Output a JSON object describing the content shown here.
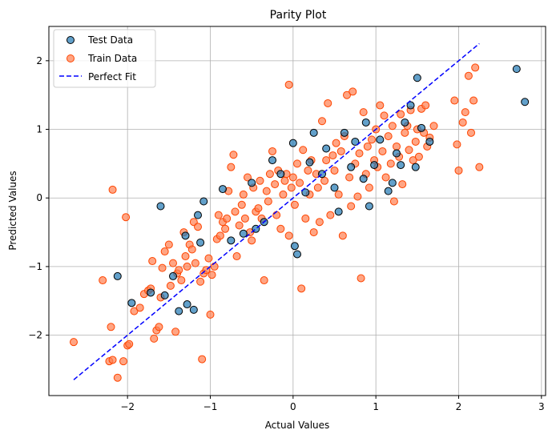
{
  "chart_data": {
    "type": "scatter",
    "title": "Parity Plot",
    "xlabel": "Actual Values",
    "ylabel": "Predicted Values",
    "xlim": [
      -2.95,
      3.05
    ],
    "ylim": [
      -2.88,
      2.5
    ],
    "xticks": [
      -2,
      -1,
      0,
      1,
      2,
      3
    ],
    "yticks": [
      -2,
      -1,
      0,
      1,
      2
    ],
    "xtick_labels": [
      "−2",
      "−1",
      "0",
      "1",
      "2",
      "3"
    ],
    "ytick_labels": [
      "−2",
      "−1",
      "0",
      "1",
      "2"
    ],
    "grid": true,
    "legend_position": "top-left",
    "series": [
      {
        "name": "Test Data",
        "kind": "scatter",
        "color": "#1f77b4",
        "edge_color": "#000000",
        "points": [
          [
            -2.12,
            -1.14
          ],
          [
            -1.95,
            -1.53
          ],
          [
            -1.72,
            -1.38
          ],
          [
            -1.55,
            -1.42
          ],
          [
            -1.6,
            -0.12
          ],
          [
            -1.45,
            -1.14
          ],
          [
            -1.38,
            -1.65
          ],
          [
            -1.28,
            -1.55
          ],
          [
            -1.3,
            -0.55
          ],
          [
            -1.2,
            -1.63
          ],
          [
            -1.12,
            -0.65
          ],
          [
            -1.15,
            -0.25
          ],
          [
            -1.08,
            -0.05
          ],
          [
            -0.85,
            0.13
          ],
          [
            -0.75,
            -0.62
          ],
          [
            -0.6,
            -0.52
          ],
          [
            -0.5,
            0.22
          ],
          [
            -0.45,
            -0.45
          ],
          [
            -0.35,
            -0.35
          ],
          [
            -0.25,
            0.55
          ],
          [
            -0.15,
            0.35
          ],
          [
            0.0,
            0.8
          ],
          [
            0.02,
            -0.7
          ],
          [
            0.05,
            -0.82
          ],
          [
            0.15,
            0.08
          ],
          [
            0.2,
            0.52
          ],
          [
            0.25,
            0.95
          ],
          [
            0.35,
            0.35
          ],
          [
            0.4,
            0.72
          ],
          [
            0.5,
            0.15
          ],
          [
            0.55,
            -0.2
          ],
          [
            0.62,
            0.95
          ],
          [
            0.7,
            0.45
          ],
          [
            0.75,
            0.82
          ],
          [
            0.85,
            0.28
          ],
          [
            0.88,
            1.1
          ],
          [
            0.92,
            -0.12
          ],
          [
            0.98,
            0.48
          ],
          [
            1.05,
            0.85
          ],
          [
            1.15,
            0.1
          ],
          [
            1.2,
            0.22
          ],
          [
            1.25,
            0.65
          ],
          [
            1.3,
            0.48
          ],
          [
            1.35,
            1.1
          ],
          [
            1.42,
            1.35
          ],
          [
            1.48,
            0.45
          ],
          [
            1.5,
            1.75
          ],
          [
            1.55,
            1.02
          ],
          [
            1.65,
            0.82
          ],
          [
            2.7,
            1.88
          ],
          [
            2.8,
            1.4
          ]
        ]
      },
      {
        "name": "Train Data",
        "kind": "scatter",
        "color": "#ff7f50",
        "edge_color": "#ff4500",
        "points": [
          [
            -2.65,
            -2.1
          ],
          [
            -2.3,
            -1.2
          ],
          [
            -2.2,
            -1.88
          ],
          [
            -2.22,
            -2.38
          ],
          [
            -2.18,
            -2.36
          ],
          [
            -2.12,
            -2.62
          ],
          [
            -2.18,
            0.12
          ],
          [
            -2.05,
            -2.38
          ],
          [
            -2.02,
            -0.28
          ],
          [
            -2.0,
            -2.15
          ],
          [
            -1.98,
            -2.13
          ],
          [
            -1.92,
            -1.65
          ],
          [
            -1.85,
            -1.6
          ],
          [
            -1.8,
            -1.4
          ],
          [
            -1.75,
            -1.35
          ],
          [
            -1.72,
            -1.32
          ],
          [
            -1.7,
            -0.92
          ],
          [
            -1.68,
            -2.05
          ],
          [
            -1.65,
            -1.93
          ],
          [
            -1.62,
            -1.88
          ],
          [
            -1.6,
            -1.45
          ],
          [
            -1.58,
            -1.02
          ],
          [
            -1.55,
            -0.78
          ],
          [
            -1.5,
            -0.68
          ],
          [
            -1.48,
            -1.28
          ],
          [
            -1.45,
            -0.95
          ],
          [
            -1.42,
            -1.95
          ],
          [
            -1.4,
            -1.1
          ],
          [
            -1.38,
            -1.05
          ],
          [
            -1.35,
            -1.2
          ],
          [
            -1.32,
            -0.5
          ],
          [
            -1.3,
            -0.85
          ],
          [
            -1.28,
            -1.0
          ],
          [
            -1.25,
            -0.68
          ],
          [
            -1.22,
            -0.75
          ],
          [
            -1.2,
            -0.35
          ],
          [
            -1.18,
            -0.95
          ],
          [
            -1.15,
            -0.42
          ],
          [
            -1.12,
            -1.22
          ],
          [
            -1.1,
            -2.35
          ],
          [
            -1.08,
            -1.1
          ],
          [
            -1.05,
            -1.05
          ],
          [
            -1.02,
            -0.88
          ],
          [
            -1.0,
            -1.7
          ],
          [
            -0.98,
            -1.12
          ],
          [
            -0.95,
            -1.0
          ],
          [
            -0.92,
            -0.6
          ],
          [
            -0.9,
            -0.25
          ],
          [
            -0.88,
            -0.55
          ],
          [
            -0.85,
            -0.35
          ],
          [
            -0.82,
            -0.45
          ],
          [
            -0.8,
            -0.3
          ],
          [
            -0.78,
            0.1
          ],
          [
            -0.75,
            0.45
          ],
          [
            -0.72,
            0.63
          ],
          [
            -0.7,
            -0.2
          ],
          [
            -0.68,
            -0.85
          ],
          [
            -0.65,
            -0.4
          ],
          [
            -0.62,
            -0.1
          ],
          [
            -0.6,
            0.05
          ],
          [
            -0.58,
            -0.3
          ],
          [
            -0.55,
            0.3
          ],
          [
            -0.52,
            -0.5
          ],
          [
            -0.5,
            -0.62
          ],
          [
            -0.48,
            0.15
          ],
          [
            -0.45,
            -0.2
          ],
          [
            -0.42,
            -0.15
          ],
          [
            -0.4,
            0.25
          ],
          [
            -0.38,
            -0.3
          ],
          [
            -0.35,
            -1.2
          ],
          [
            -0.32,
            0.1
          ],
          [
            -0.3,
            -0.05
          ],
          [
            -0.28,
            0.35
          ],
          [
            -0.25,
            0.68
          ],
          [
            -0.22,
            0.2
          ],
          [
            -0.2,
            -0.25
          ],
          [
            -0.18,
            0.4
          ],
          [
            -0.15,
            -0.45
          ],
          [
            -0.12,
            0.05
          ],
          [
            -0.1,
            0.25
          ],
          [
            -0.08,
            0.35
          ],
          [
            -0.05,
            -0.55
          ],
          [
            -0.02,
            0.15
          ],
          [
            0.0,
            0.3
          ],
          [
            0.02,
            -0.1
          ],
          [
            0.05,
            0.5
          ],
          [
            0.08,
            0.22
          ],
          [
            0.1,
            -1.32
          ],
          [
            0.12,
            0.7
          ],
          [
            0.15,
            -0.3
          ],
          [
            0.18,
            0.4
          ],
          [
            0.2,
            0.05
          ],
          [
            0.22,
            0.55
          ],
          [
            0.25,
            -0.5
          ],
          [
            0.28,
            0.35
          ],
          [
            0.3,
            0.15
          ],
          [
            0.32,
            -0.35
          ],
          [
            0.35,
            1.12
          ],
          [
            0.38,
            0.25
          ],
          [
            0.4,
            0.55
          ],
          [
            0.42,
            1.38
          ],
          [
            0.45,
            -0.25
          ],
          [
            0.48,
            0.62
          ],
          [
            0.5,
            0.4
          ],
          [
            0.52,
            0.8
          ],
          [
            0.55,
            0.05
          ],
          [
            0.58,
            0.68
          ],
          [
            0.6,
            -0.55
          ],
          [
            0.62,
            0.9
          ],
          [
            0.65,
            1.5
          ],
          [
            0.68,
            0.3
          ],
          [
            0.7,
            -0.12
          ],
          [
            0.72,
            1.55
          ],
          [
            0.75,
            0.5
          ],
          [
            0.78,
            0.02
          ],
          [
            0.8,
            0.65
          ],
          [
            0.82,
            -1.17
          ],
          [
            0.85,
            1.25
          ],
          [
            0.88,
            0.35
          ],
          [
            0.9,
            0.75
          ],
          [
            0.92,
            0.15
          ],
          [
            0.95,
            0.85
          ],
          [
            0.98,
            0.55
          ],
          [
            1.0,
            1.0
          ],
          [
            1.02,
            0.45
          ],
          [
            1.05,
            1.35
          ],
          [
            1.08,
            0.68
          ],
          [
            1.1,
            1.2
          ],
          [
            1.12,
            0.3
          ],
          [
            1.15,
            0.9
          ],
          [
            1.18,
            0.5
          ],
          [
            1.2,
            1.05
          ],
          [
            1.22,
            -0.05
          ],
          [
            1.25,
            0.75
          ],
          [
            1.28,
            0.6
          ],
          [
            1.3,
            1.22
          ],
          [
            1.32,
            0.2
          ],
          [
            1.35,
            0.95
          ],
          [
            1.38,
            1.05
          ],
          [
            1.4,
            0.7
          ],
          [
            1.42,
            1.28
          ],
          [
            1.45,
            0.55
          ],
          [
            1.48,
            0.82
          ],
          [
            1.5,
            1.0
          ],
          [
            1.52,
            0.6
          ],
          [
            1.55,
            1.3
          ],
          [
            1.58,
            0.95
          ],
          [
            1.6,
            1.35
          ],
          [
            1.62,
            0.75
          ],
          [
            1.65,
            0.88
          ],
          [
            1.7,
            1.05
          ],
          [
            1.95,
            1.42
          ],
          [
            1.98,
            0.78
          ],
          [
            2.0,
            0.4
          ],
          [
            2.05,
            1.1
          ],
          [
            2.08,
            1.25
          ],
          [
            2.12,
            1.78
          ],
          [
            2.15,
            0.95
          ],
          [
            2.18,
            1.42
          ],
          [
            2.2,
            1.9
          ],
          [
            2.25,
            0.45
          ],
          [
            -0.05,
            1.65
          ]
        ]
      },
      {
        "name": "Perfect Fit",
        "kind": "line",
        "color": "#0000ff",
        "dash": "dashed",
        "points": [
          [
            -2.65,
            -2.65
          ],
          [
            2.25,
            2.25
          ]
        ]
      }
    ]
  }
}
